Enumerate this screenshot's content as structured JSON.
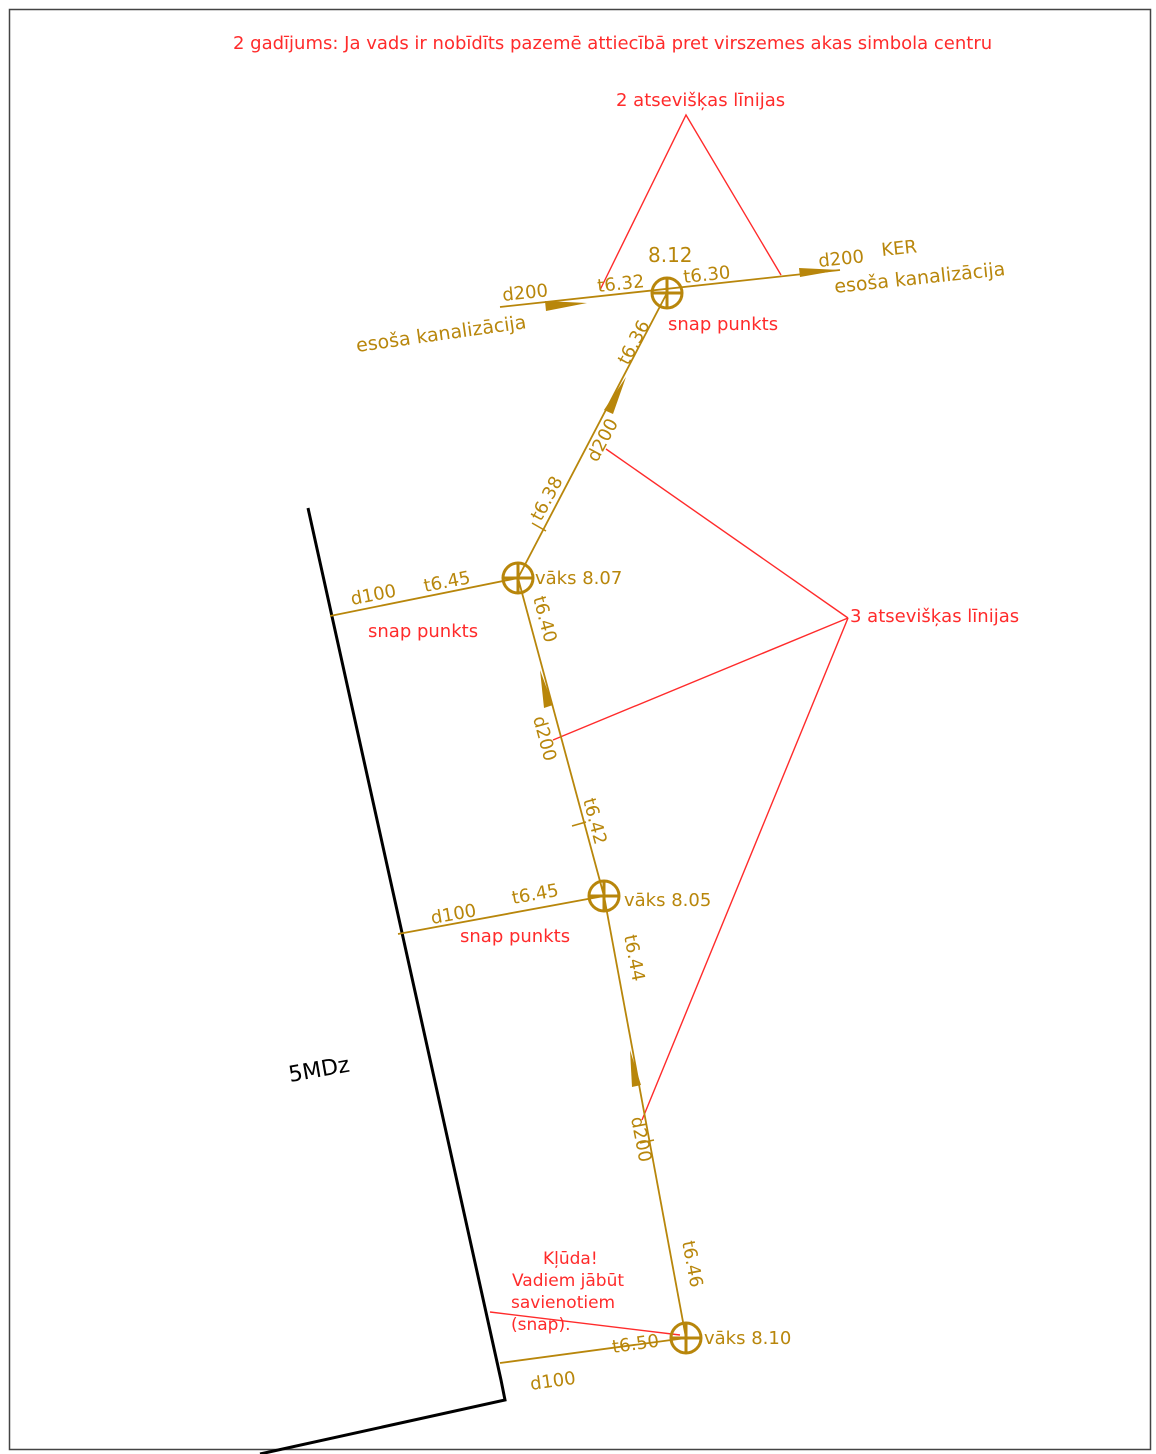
{
  "colors": {
    "annotation": "#ff2b2b",
    "sewer": "#b8860b",
    "boundary": "#000000",
    "frame": "#444444"
  },
  "title": "2 gadījums: Ja vads ir nobīdīts pazemē attiecībā pret virszemes akas simbola centru",
  "callouts": {
    "two_lines": "2 atsevišķas līnijas",
    "three_lines": "3 atsevišķas līnijas",
    "snap_top": "snap punkts",
    "snap_mid": "snap punkts",
    "snap_low": "snap punkts",
    "error": [
      "Kļūda!",
      "Vadiem jābūt",
      "savienotiem",
      "(snap)."
    ]
  },
  "wells": {
    "top": {
      "level": "8.12"
    },
    "mid": {
      "label": "vāks 8.07"
    },
    "low": {
      "label": "vāks 8.05"
    },
    "bottom": {
      "label": "vāks 8.10"
    }
  },
  "pipes": {
    "existing_left": {
      "diameter": "d200",
      "name": "esoša kanalizācija",
      "invert": "t6.32"
    },
    "existing_right": {
      "diameter": "d200",
      "material": "KER",
      "name": "esoša kanalizācija",
      "invert": "t6.30"
    },
    "main_upper": {
      "diameter": "d200",
      "invert_top": "t6.36",
      "invert_bottom": "t6.38"
    },
    "main_middle": {
      "diameter": "d200",
      "invert_top": "t6.40",
      "invert_bottom": "t6.42"
    },
    "main_lower": {
      "diameter": "d200",
      "invert_top": "t6.44",
      "invert_bottom": "t6.46"
    },
    "branch_mid": {
      "diameter": "d100",
      "invert": "t6.45"
    },
    "branch_low": {
      "diameter": "d100",
      "invert": "t6.45"
    },
    "branch_bottom": {
      "diameter": "d100",
      "invert": "t6.50"
    }
  },
  "boundary_label": "5MDz"
}
